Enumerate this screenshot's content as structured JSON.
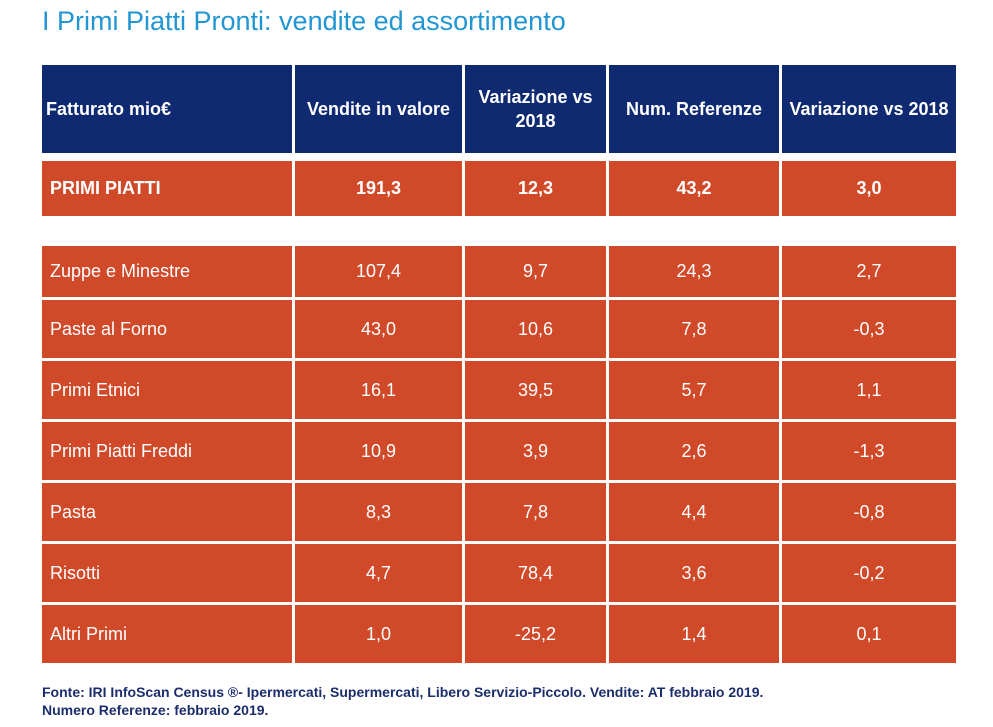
{
  "title": "I Primi Piatti Pronti: vendite ed assortimento",
  "header": [
    "Fatturato mio€",
    "Vendite in valore",
    "Variazione vs 2018",
    "Num. Referenze",
    "Variazione vs 2018"
  ],
  "total": [
    "PRIMI PIATTI",
    "191,3",
    "12,3",
    "43,2",
    "3,0"
  ],
  "rows": [
    [
      "Zuppe e Minestre",
      "107,4",
      "9,7",
      "24,3",
      "2,7"
    ],
    [
      "Paste al Forno",
      "43,0",
      "10,6",
      "7,8",
      "-0,3"
    ],
    [
      "Primi Etnici",
      "16,1",
      "39,5",
      "5,7",
      "1,1"
    ],
    [
      "Primi Piatti Freddi",
      "10,9",
      "3,9",
      "2,6",
      "-1,3"
    ],
    [
      "Pasta",
      "8,3",
      "7,8",
      "4,4",
      "-0,8"
    ],
    [
      "Risotti",
      "4,7",
      "78,4",
      "3,6",
      "-0,2"
    ],
    [
      "Altri Primi",
      "1,0",
      "-25,2",
      "1,4",
      "0,1"
    ]
  ],
  "footer": {
    "line1": "Fonte: IRI InfoScan Census ®- Ipermercati, Supermercati, Libero Servizio-Piccolo. Vendite: AT febbraio 2019.",
    "line2": "Numero Referenze: febbraio 2019."
  },
  "colors": {
    "title": "#2196d3",
    "header_bg": "#0f2a71",
    "row_bg": "#d04a2a",
    "footer_text": "#1b2e6b"
  }
}
